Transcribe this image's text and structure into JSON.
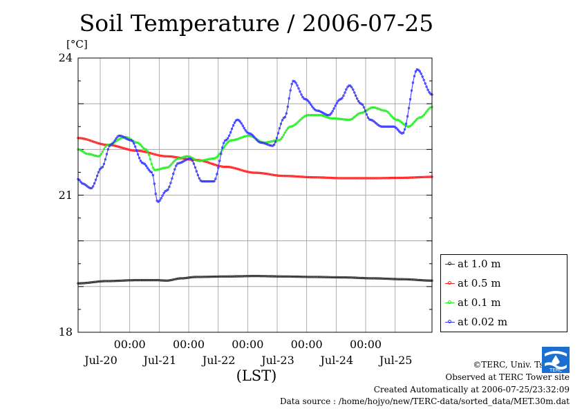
{
  "chart_data": {
    "type": "line",
    "title": "Soil Temperature / 2006-07-25",
    "ylabel": "[°C]",
    "xlabel": "(LST)",
    "ylim": [
      18,
      24
    ],
    "yticks": [
      18,
      21,
      24
    ],
    "xlim": [
      0,
      6
    ],
    "xaxis_start": "2006-07-19T03:00",
    "time_ticks": [
      "00:00",
      "00:00",
      "00:00",
      "00:00",
      "00:00"
    ],
    "date_ticks": [
      "Jul-20",
      "Jul-21",
      "Jul-22",
      "Jul-23",
      "Jul-24",
      "Jul-25"
    ],
    "grid": true,
    "legend_position": "lower-right outside",
    "series": [
      {
        "name": "at 1.0 m",
        "color": "#333333",
        "x": [
          0.0,
          0.5,
          1.0,
          1.33,
          1.5,
          1.75,
          2.0,
          2.5,
          3.0,
          3.5,
          4.0,
          4.5,
          5.0,
          5.5,
          6.0
        ],
        "y": [
          19.07,
          19.12,
          19.14,
          19.14,
          19.13,
          19.18,
          19.21,
          19.22,
          19.23,
          19.22,
          19.21,
          19.2,
          19.18,
          19.16,
          19.13
        ]
      },
      {
        "name": "at 0.5 m",
        "color": "#ff2020",
        "x": [
          0.0,
          0.5,
          1.0,
          1.5,
          2.0,
          2.5,
          3.0,
          3.5,
          4.0,
          4.5,
          5.0,
          5.5,
          6.0
        ],
        "y": [
          22.25,
          22.1,
          21.97,
          21.85,
          21.77,
          21.62,
          21.49,
          21.42,
          21.39,
          21.37,
          21.37,
          21.38,
          21.4
        ]
      },
      {
        "name": "at 0.1 m",
        "color": "#20ee20",
        "x": [
          0.0,
          0.17,
          0.35,
          0.5,
          0.8,
          1.0,
          1.15,
          1.3,
          1.5,
          1.7,
          1.85,
          2.05,
          2.3,
          2.6,
          2.9,
          3.15,
          3.4,
          3.6,
          3.9,
          4.1,
          4.3,
          4.6,
          4.8,
          5.0,
          5.2,
          5.4,
          5.6,
          5.8,
          6.0
        ],
        "y": [
          22.0,
          21.9,
          21.85,
          22.1,
          22.27,
          22.15,
          22.0,
          21.55,
          21.6,
          21.8,
          21.85,
          21.75,
          21.8,
          22.2,
          22.3,
          22.15,
          22.2,
          22.5,
          22.75,
          22.75,
          22.68,
          22.65,
          22.8,
          22.92,
          22.85,
          22.65,
          22.5,
          22.7,
          22.93
        ]
      },
      {
        "name": "at 0.02 m",
        "color": "#3333ff",
        "x": [
          0.0,
          0.08,
          0.22,
          0.4,
          0.55,
          0.7,
          0.9,
          1.1,
          1.25,
          1.35,
          1.5,
          1.7,
          1.9,
          2.1,
          2.3,
          2.5,
          2.7,
          2.9,
          3.1,
          3.3,
          3.5,
          3.65,
          3.85,
          4.05,
          4.25,
          4.45,
          4.6,
          4.8,
          4.95,
          5.15,
          5.35,
          5.5,
          5.75,
          6.0
        ],
        "y": [
          21.35,
          21.25,
          21.15,
          21.6,
          22.1,
          22.3,
          22.2,
          21.7,
          21.5,
          20.85,
          21.1,
          21.7,
          21.8,
          21.3,
          21.3,
          22.2,
          22.65,
          22.35,
          22.15,
          22.08,
          22.7,
          23.5,
          23.1,
          22.85,
          22.75,
          23.1,
          23.4,
          23.0,
          22.65,
          22.5,
          22.5,
          22.35,
          23.75,
          23.2
        ]
      }
    ]
  },
  "credits": {
    "copyright": "©TERC, Univ. Tsukuba",
    "site": "Observed at TERC Tower site",
    "created": "Created Automatically at 2006-07-25/23:32:09",
    "source": "Data source : /home/hojyo/new/TERC-data/sorted_data/MET.30m.dat"
  },
  "logo": {
    "text": "TERC",
    "color": "#1a6fd0"
  }
}
